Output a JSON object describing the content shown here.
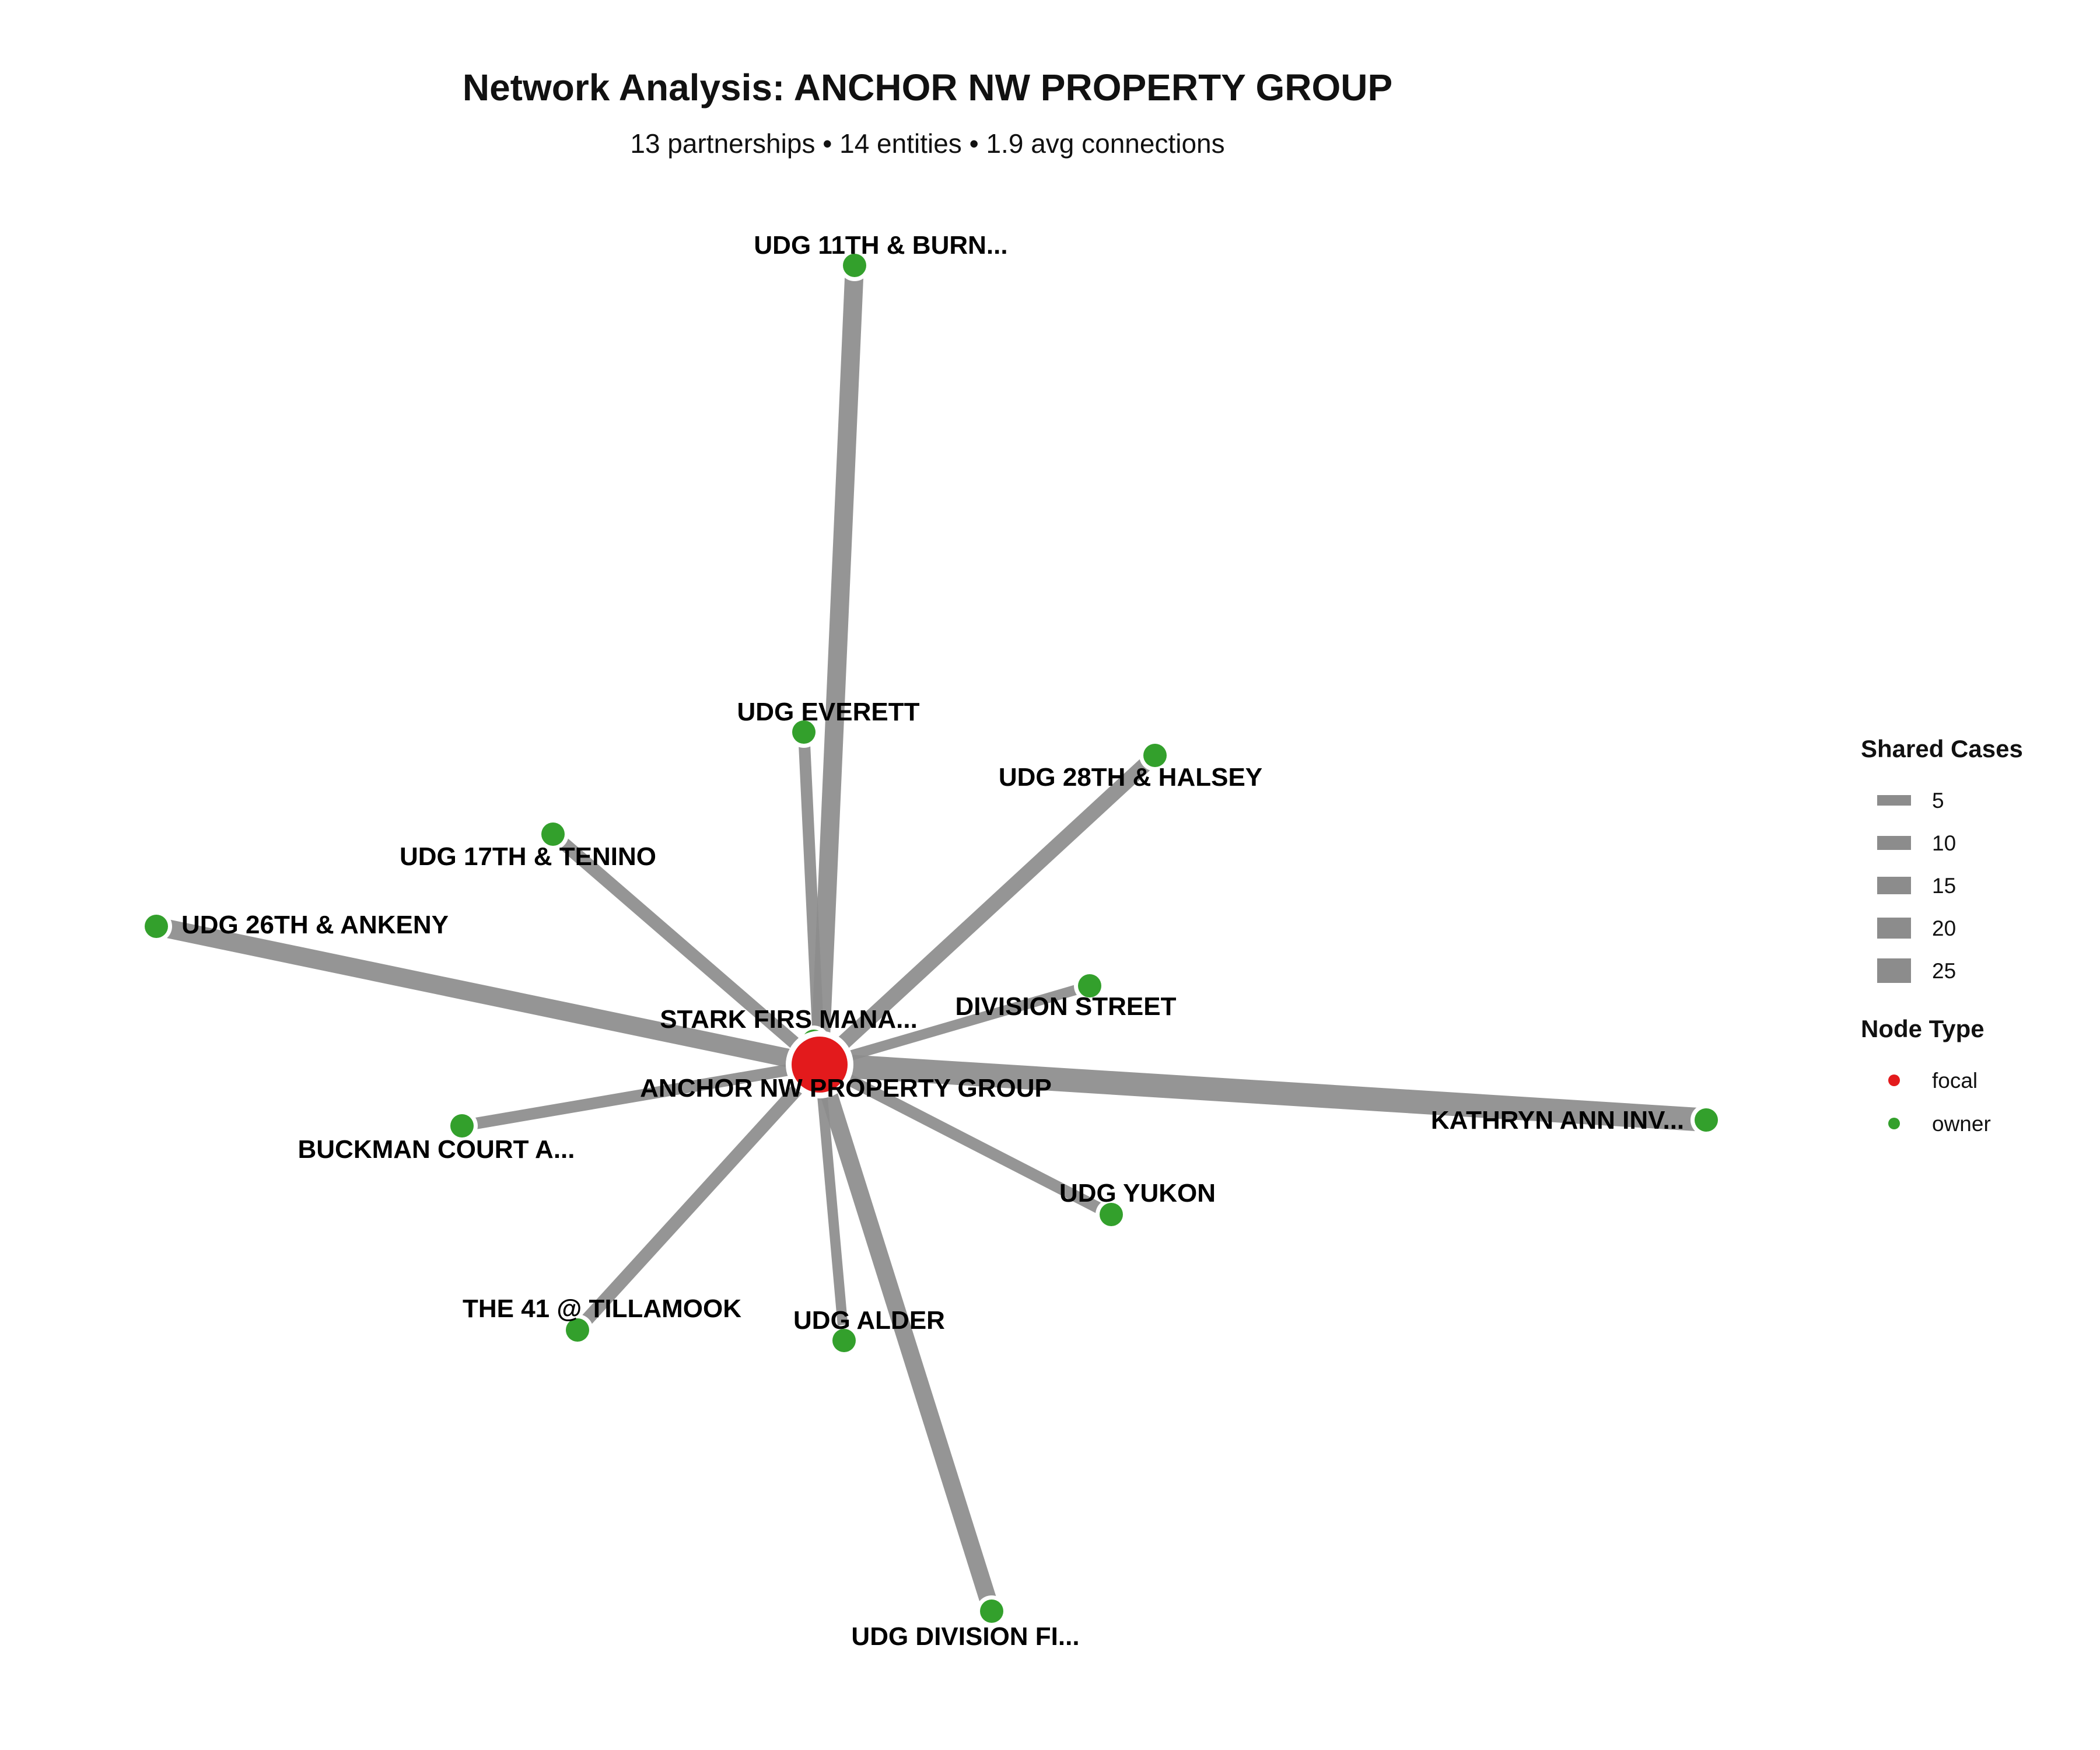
{
  "title": "Network Analysis: ANCHOR NW PROPERTY GROUP",
  "subtitle": "13 partnerships • 14 entities • 1.9 avg connections",
  "colors": {
    "focal": "#e31a1c",
    "owner": "#33a02c",
    "edge": "#8c8c8c",
    "halo": "#ffffff"
  },
  "chart_data": {
    "type": "network",
    "focal": "ANCHOR NW PROPERTY GROUP",
    "nodes": [
      {
        "id": "focal",
        "label": "ANCHOR NW PROPERTY GROUP",
        "type": "focal"
      },
      {
        "id": "burnside",
        "label": "UDG 11TH & BURN...",
        "type": "owner",
        "shared_cases": 20
      },
      {
        "id": "everett",
        "label": "UDG EVERETT",
        "type": "owner",
        "shared_cases": 10
      },
      {
        "id": "halsey",
        "label": "UDG 28TH & HALSEY",
        "type": "owner",
        "shared_cases": 15
      },
      {
        "id": "tenino",
        "label": "UDG 17TH & TENINO",
        "type": "owner",
        "shared_cases": 12
      },
      {
        "id": "ankeny",
        "label": "UDG 26TH & ANKENY",
        "type": "owner",
        "shared_cases": 20
      },
      {
        "id": "starkfirs",
        "label": "STARK FIRS MANA...",
        "type": "owner",
        "shared_cases": 3
      },
      {
        "id": "division",
        "label": "DIVISION STREET",
        "type": "owner",
        "shared_cases": 8
      },
      {
        "id": "buckman",
        "label": "BUCKMAN COURT A...",
        "type": "owner",
        "shared_cases": 10
      },
      {
        "id": "kathryn",
        "label": "KATHRYN ANN INV...",
        "type": "owner",
        "shared_cases": 27
      },
      {
        "id": "yukon",
        "label": "UDG YUKON",
        "type": "owner",
        "shared_cases": 10
      },
      {
        "id": "tillamook",
        "label": "THE 41 @ TILLAMOOK",
        "type": "owner",
        "shared_cases": 12
      },
      {
        "id": "alder",
        "label": "UDG ALDER",
        "type": "owner",
        "shared_cases": 8
      },
      {
        "id": "divisionfi",
        "label": "UDG DIVISION FI...",
        "type": "owner",
        "shared_cases": 18
      }
    ],
    "legend": {
      "edge_title": "Shared Cases",
      "edge_values": [
        5,
        10,
        15,
        20,
        25
      ],
      "edge_labels": [
        "5",
        "10",
        "15",
        "20",
        "25"
      ],
      "node_title": "Node Type",
      "node_types": [
        {
          "key": "focal",
          "label": "focal"
        },
        {
          "key": "owner",
          "label": "owner"
        }
      ]
    }
  }
}
